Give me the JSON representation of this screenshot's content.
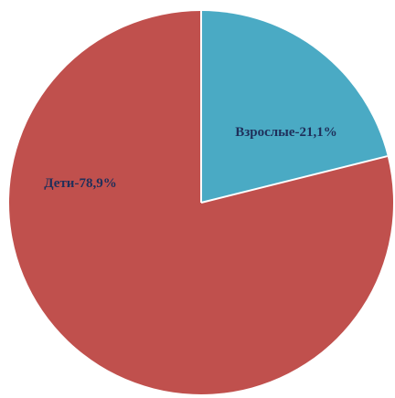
{
  "chart_data": {
    "type": "pie",
    "title": "",
    "slices": [
      {
        "label": "Взрослые-21,1%",
        "value": 21.1,
        "color": "#4aaac4"
      },
      {
        "label": "Дети-78,9%",
        "value": 78.9,
        "color": "#c0504d"
      }
    ],
    "start_angle": "top (12 o'clock)",
    "direction": "clockwise",
    "legend": "none",
    "label_color": "#1f2f5a",
    "separator_color": "#ffffff"
  }
}
